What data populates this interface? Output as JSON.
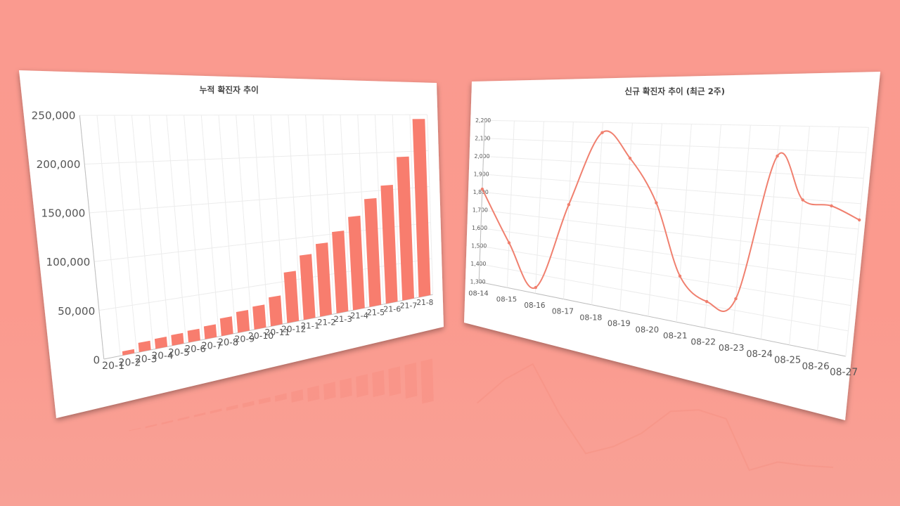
{
  "colors": {
    "background": "#fa9a8f",
    "bar": "#f87d6e",
    "line": "#f0806f"
  },
  "chart_data": [
    {
      "type": "bar",
      "title": "누적 확진자 추이",
      "categories": [
        "20-1",
        "20-2",
        "20-3",
        "20-4",
        "20-5",
        "20-6",
        "20-7",
        "20-8",
        "20-9",
        "20-10",
        "20-11",
        "20-12",
        "21-1",
        "21-2",
        "21-3",
        "21-4",
        "21-5",
        "21-6",
        "21-7",
        "21-8"
      ],
      "values": [
        11,
        4200,
        9800,
        10800,
        11500,
        12800,
        14300,
        19900,
        23900,
        26700,
        34200,
        60700,
        78500,
        90000,
        102600,
        119400,
        140300,
        156200,
        193000,
        244000
      ],
      "ylim": [
        0,
        250000
      ],
      "yticks": [
        "0",
        "50,000",
        "100,000",
        "150,000",
        "200,000",
        "250,000"
      ],
      "grid": true,
      "legend": "none"
    },
    {
      "type": "line",
      "title": "신규 확진자 추이 (최근 2주)",
      "categories": [
        "08-14",
        "08-15",
        "08-16",
        "08-17",
        "08-18",
        "08-19",
        "08-20",
        "08-21",
        "08-22",
        "08-23",
        "08-24",
        "08-25",
        "08-26",
        "08-27"
      ],
      "values": [
        1817,
        1542,
        1331,
        1780,
        2150,
        2031,
        1830,
        1509,
        1416,
        1450,
        2072,
        1897,
        1882,
        1836
      ],
      "ylim": [
        1300,
        2200
      ],
      "yticks": [
        "1,300",
        "1,400",
        "1,500",
        "1,600",
        "1,700",
        "1,800",
        "1,900",
        "2,000",
        "2,100",
        "2,200"
      ],
      "grid": true,
      "smooth": true,
      "legend": "none"
    }
  ]
}
